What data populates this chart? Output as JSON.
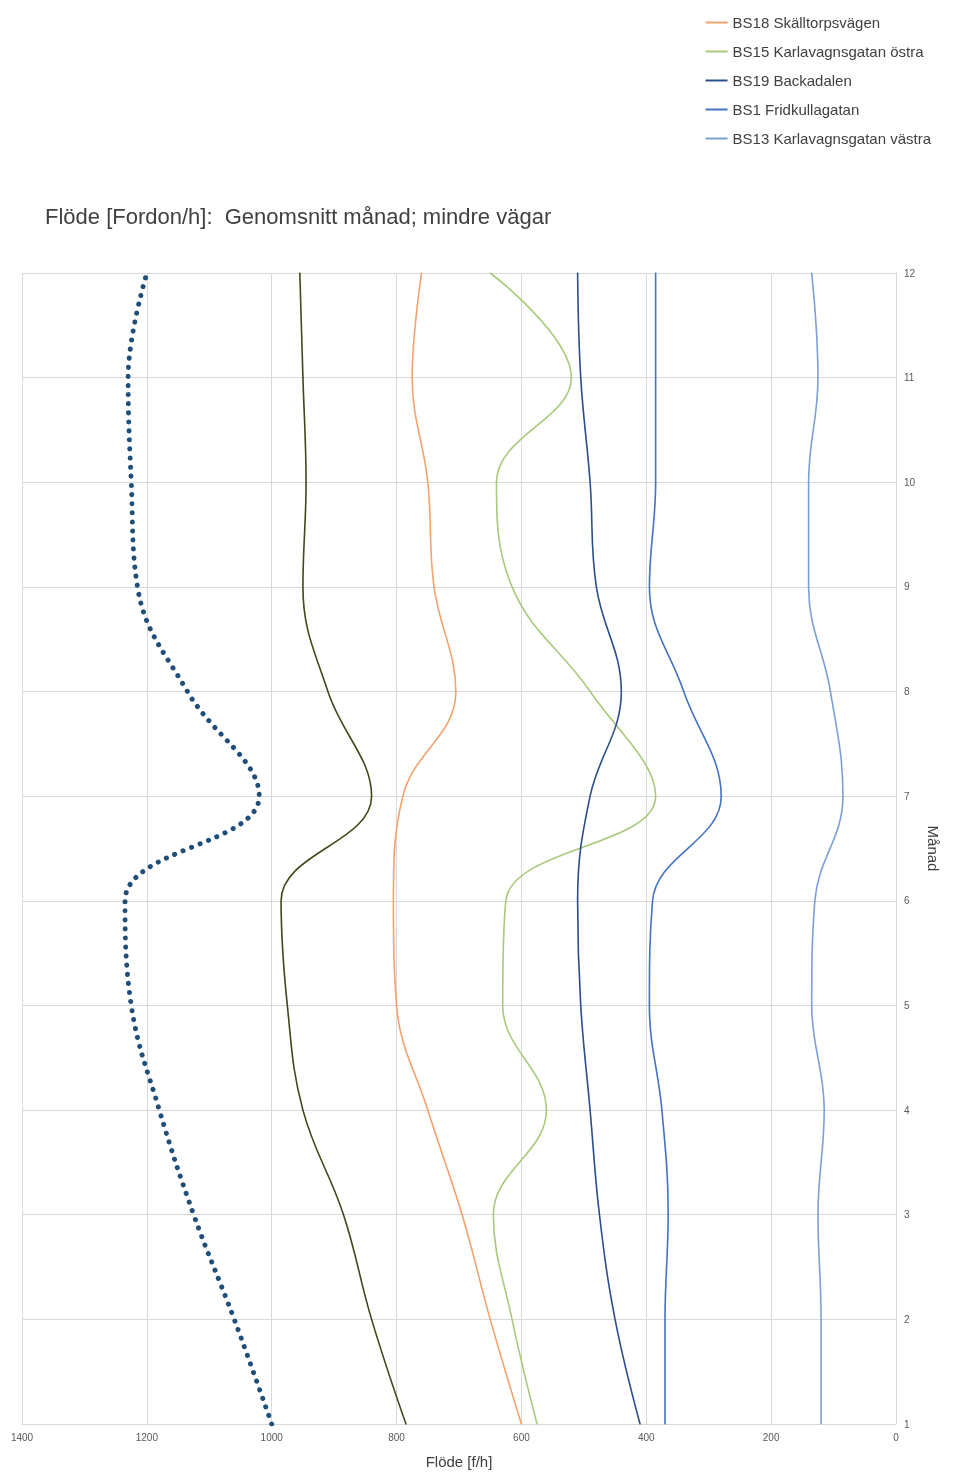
{
  "chart_data": {
    "type": "line",
    "title": "Flöde [Fordon/h]:  Genomsnitt månad; mindre vägar",
    "xlabel": "Flöde [f/h]",
    "ylabel": "Månad",
    "xlim": [
      1400,
      0
    ],
    "xticks": [
      1400,
      1200,
      1000,
      800,
      600,
      400,
      200,
      0
    ],
    "ylim": [
      1,
      12
    ],
    "yticks": [
      1,
      2,
      3,
      4,
      5,
      6,
      7,
      8,
      9,
      10,
      11,
      12
    ],
    "grid": true,
    "legend": "top right",
    "marker": "none",
    "series": [
      {
        "color": "#1f4e79",
        "line_style": "dotted",
        "x": [
          1000,
          1060,
          1125,
          1180,
          1225,
          1235,
          1020,
          1135,
          1215,
          1225,
          1230,
          1200
        ],
        "values": [
          1,
          2,
          3,
          4,
          5,
          6,
          7,
          8,
          9,
          10,
          11,
          12
        ]
      },
      {
        "color": "#3d4a1a",
        "line_style": "solid",
        "x": [
          785,
          840,
          885,
          950,
          975,
          985,
          840,
          910,
          950,
          945,
          950,
          955
        ],
        "values": [
          1,
          2,
          3,
          4,
          5,
          6,
          7,
          8,
          9,
          10,
          11,
          12
        ]
      },
      {
        "name": "BS18 Skälltorpsvägen",
        "color": "#f5a26b",
        "line_style": "solid",
        "x": [
          600,
          650,
          695,
          750,
          800,
          805,
          790,
          705,
          740,
          750,
          775,
          760
        ],
        "values": [
          1,
          2,
          3,
          4,
          5,
          6,
          7,
          8,
          9,
          10,
          11,
          12
        ]
      },
      {
        "name": "BS15 Karlavagnsgatan östra",
        "color": "#a9c97c",
        "line_style": "solid",
        "x": [
          575,
          615,
          645,
          560,
          630,
          625,
          385,
          490,
          615,
          640,
          520,
          650
        ],
        "values": [
          1,
          2,
          3,
          4,
          5,
          6,
          7,
          8,
          9,
          10,
          11,
          12
        ]
      },
      {
        "name": "BS19 Backadalen",
        "color": "#2a4f8a",
        "line_style": "solid",
        "x": [
          410,
          450,
          475,
          490,
          505,
          510,
          490,
          440,
          480,
          490,
          505,
          510
        ],
        "values": [
          1,
          2,
          3,
          4,
          5,
          6,
          7,
          8,
          9,
          10,
          11,
          12
        ]
      },
      {
        "name": "BS1 Fridkullagatan",
        "color": "#4472c4",
        "line_style": "solid",
        "x": [
          370,
          370,
          365,
          375,
          395,
          390,
          280,
          340,
          395,
          385,
          385,
          385
        ],
        "values": [
          1,
          2,
          3,
          4,
          5,
          6,
          7,
          8,
          9,
          10,
          11,
          12
        ]
      },
      {
        "name": "BS13 Karlavagnsgatan västra",
        "color": "#7ba0d8",
        "line_style": "solid",
        "x": [
          120,
          120,
          125,
          115,
          135,
          130,
          85,
          105,
          140,
          140,
          125,
          135
        ],
        "values": [
          1,
          2,
          3,
          4,
          5,
          6,
          7,
          8,
          9,
          10,
          11,
          12
        ]
      }
    ]
  }
}
